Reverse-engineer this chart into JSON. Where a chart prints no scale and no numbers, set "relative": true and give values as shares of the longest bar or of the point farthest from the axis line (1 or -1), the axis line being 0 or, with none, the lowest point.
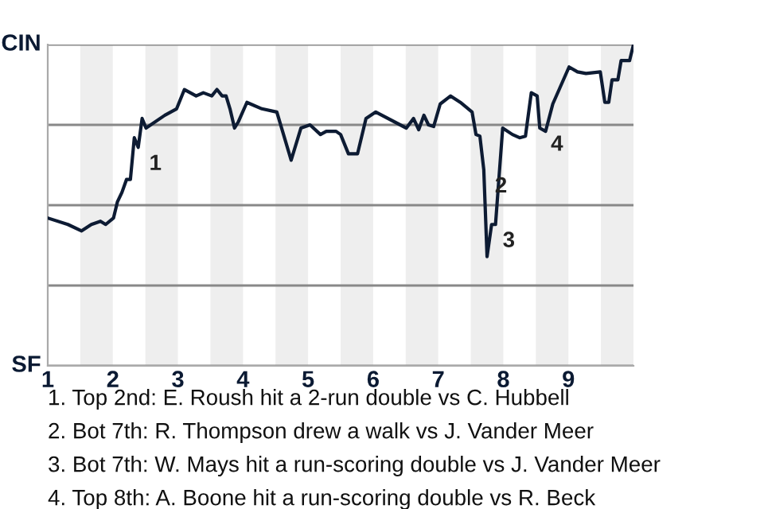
{
  "chart_data": {
    "type": "line",
    "relative": true,
    "x": [
      1.0,
      1.31,
      1.52,
      1.67,
      1.81,
      1.89,
      2.01,
      2.07,
      2.14,
      2.21,
      2.27,
      2.33,
      2.39,
      2.45,
      2.51,
      2.8,
      2.98,
      3.1,
      3.28,
      3.39,
      3.52,
      3.6,
      3.68,
      3.74,
      3.8,
      3.87,
      3.93,
      4.06,
      4.29,
      4.52,
      4.74,
      4.89,
      5.03,
      5.19,
      5.28,
      5.43,
      5.5,
      5.62,
      5.76,
      5.89,
      6.04,
      6.51,
      6.62,
      6.7,
      6.78,
      6.85,
      6.93,
      7.03,
      7.19,
      7.34,
      7.52,
      7.58,
      7.64,
      7.7,
      7.75,
      7.82,
      7.88,
      7.99,
      8.14,
      8.25,
      8.34,
      8.43,
      8.52,
      8.56,
      8.65,
      8.76,
      9.01,
      9.14,
      9.27,
      9.49,
      9.56,
      9.62,
      9.67,
      9.76,
      9.81,
      9.94,
      10.0
    ],
    "series": [
      {
        "color": "#0d1b33",
        "values": [
          0.46,
          0.44,
          0.42,
          0.44,
          0.45,
          0.44,
          0.46,
          0.51,
          0.54,
          0.58,
          0.58,
          0.71,
          0.68,
          0.77,
          0.74,
          0.78,
          0.8,
          0.86,
          0.84,
          0.85,
          0.84,
          0.86,
          0.84,
          0.84,
          0.8,
          0.74,
          0.76,
          0.82,
          0.8,
          0.79,
          0.64,
          0.74,
          0.75,
          0.72,
          0.73,
          0.73,
          0.72,
          0.66,
          0.66,
          0.77,
          0.79,
          0.74,
          0.77,
          0.735,
          0.78,
          0.75,
          0.745,
          0.815,
          0.84,
          0.82,
          0.79,
          0.72,
          0.715,
          0.61,
          0.34,
          0.44,
          0.44,
          0.74,
          0.72,
          0.71,
          0.715,
          0.85,
          0.84,
          0.74,
          0.73,
          0.815,
          0.93,
          0.915,
          0.91,
          0.915,
          0.82,
          0.82,
          0.89,
          0.89,
          0.95,
          0.95,
          1.0
        ]
      }
    ],
    "xlim": [
      1,
      10
    ],
    "xticks": [
      1,
      2,
      3,
      4,
      5,
      6,
      7,
      8,
      9
    ],
    "grid": "y",
    "bands": [
      {
        "axis": "x",
        "from": 1.5,
        "to": 2,
        "color": "#eeeeee"
      },
      {
        "axis": "x",
        "from": 2.5,
        "to": 3,
        "color": "#eeeeee"
      },
      {
        "axis": "x",
        "from": 3.5,
        "to": 4,
        "color": "#eeeeee"
      },
      {
        "axis": "x",
        "from": 4.5,
        "to": 5,
        "color": "#eeeeee"
      },
      {
        "axis": "x",
        "from": 5.5,
        "to": 6,
        "color": "#eeeeee"
      },
      {
        "axis": "x",
        "from": 6.5,
        "to": 7,
        "color": "#eeeeee"
      },
      {
        "axis": "x",
        "from": 7.5,
        "to": 8,
        "color": "#eeeeee"
      },
      {
        "axis": "x",
        "from": 8.5,
        "to": 9,
        "color": "#eeeeee"
      },
      {
        "axis": "x",
        "from": 9.5,
        "to": 10,
        "color": "#eeeeee"
      }
    ],
    "annotations": [
      "CIN",
      "SF",
      {
        "text": "1",
        "x": 2.39,
        "y": 0.68
      },
      {
        "text": "2",
        "x": 7.7,
        "y": 0.61
      },
      {
        "text": "3",
        "x": 7.82,
        "y": 0.44
      },
      {
        "text": "4",
        "x": 8.56,
        "y": 0.74
      },
      "1. Top 2nd: E. Roush hit a 2-run double vs C. Hubbell",
      "2. Bot 7th: R. Thompson drew a walk vs J. Vander Meer",
      "3. Bot 7th: W. Mays hit a run-scoring double vs J. Vander Meer",
      "4. Top 8th: A. Boone hit a run-scoring double vs R. Beck"
    ]
  }
}
